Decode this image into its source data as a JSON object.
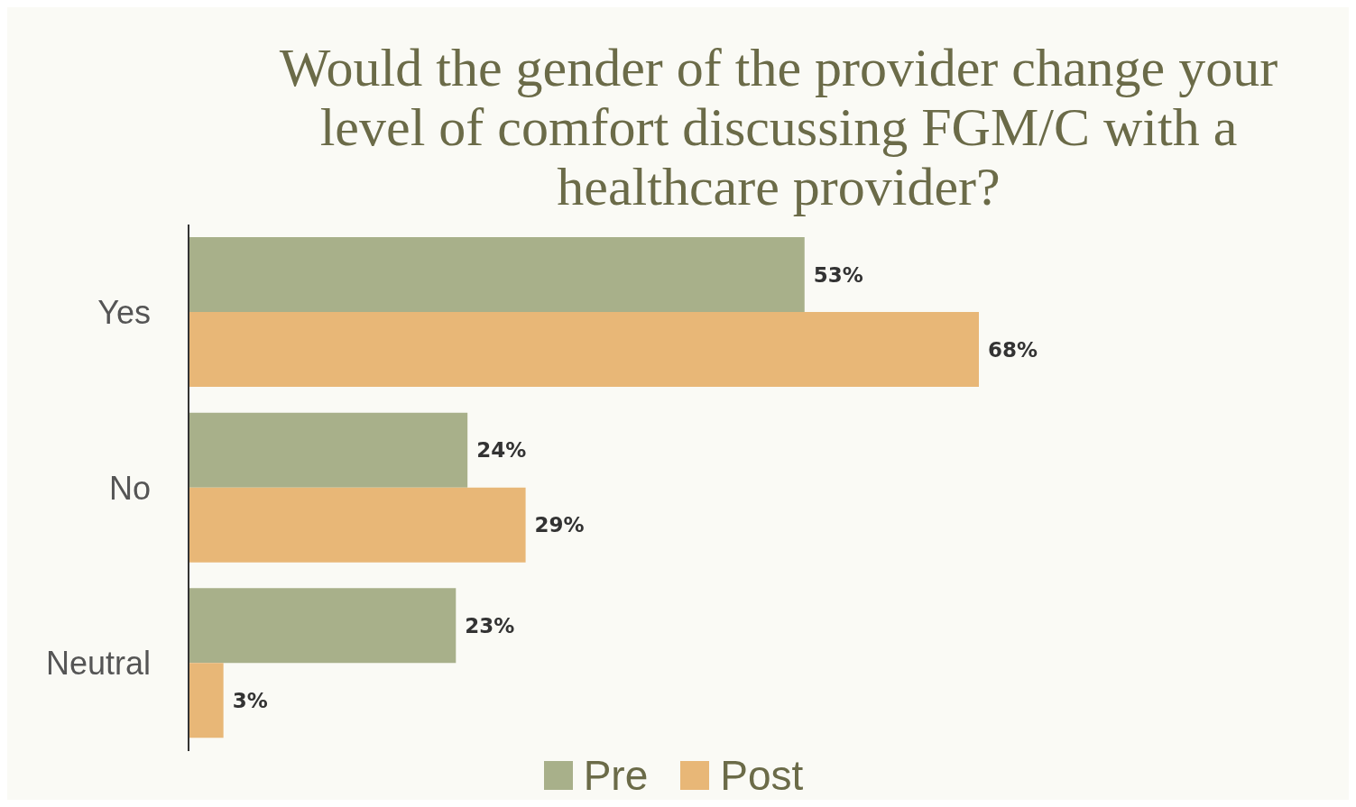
{
  "chart_data": {
    "type": "bar",
    "orientation": "horizontal",
    "title": "Would the gender of the provider change your level of comfort discussing FGM/C with a healthcare provider?",
    "categories": [
      "Yes",
      "No",
      "Neutral"
    ],
    "series": [
      {
        "name": "Pre",
        "color": "#a8b08a",
        "values": [
          53,
          24,
          23
        ],
        "value_labels": [
          "53%",
          "24%",
          "23%"
        ]
      },
      {
        "name": "Post",
        "color": "#e8b777",
        "values": [
          68,
          29,
          3
        ],
        "value_labels": [
          "68%",
          "29%",
          "3%"
        ]
      }
    ],
    "grid": false,
    "legend": "bottom"
  }
}
